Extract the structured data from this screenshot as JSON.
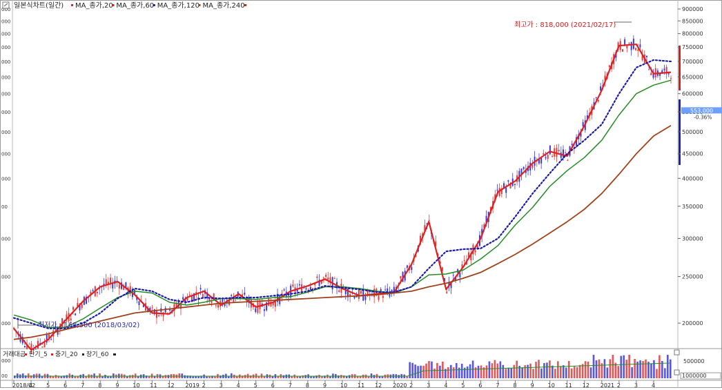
{
  "header": {
    "title": "일본식차트(일간)",
    "legend": [
      {
        "label": "MA_종가,20",
        "color": "#e02020"
      },
      {
        "label": "MA_종가,60",
        "color": "#e02020"
      },
      {
        "label": "MA_종가,120",
        "color": "#1a1aa8"
      },
      {
        "label": "MA_종가,240",
        "color": "#a0401a"
      }
    ]
  },
  "annotations": {
    "high_label": "최고가 : 818,000 (2021/02/17)",
    "low_label": "최저가 : 168,500 (2018/03/02)"
  },
  "price_axis": {
    "right_ticks": [
      "900000",
      "850000",
      "800000",
      "750000",
      "700000",
      "650000",
      "600000",
      "550000",
      "500000",
      "450000",
      "400000",
      "350000",
      "300000",
      "250000",
      "200000"
    ],
    "left_ticks": [
      "000",
      "000",
      "000",
      "000",
      "000",
      "000",
      "000",
      "000",
      "000",
      "000",
      "000",
      "00",
      "000",
      "000",
      "000"
    ],
    "current_price": "553,000",
    "current_change": "-0.36%"
  },
  "volume": {
    "legend": [
      {
        "label": "거래대금",
        "color": "#e02020"
      },
      {
        "label": "단기_5",
        "color": "#e02020"
      },
      {
        "label": "중기_20",
        "color": "#e02020"
      },
      {
        "label": "장기_60",
        "color": "#222222"
      }
    ],
    "axis_ticks": [
      "500000",
      "1000000"
    ],
    "left_ticks": [
      "000",
      "00"
    ]
  },
  "x_axis": {
    "labels": [
      "2018/02",
      "4",
      "5",
      "6",
      "7",
      "8",
      "9",
      "10",
      "11",
      "12",
      "2019",
      "2",
      "3",
      "4",
      "5",
      "6",
      "7",
      "8",
      "9",
      "10",
      "11",
      "12",
      "2020",
      "2",
      "3",
      "4",
      "5",
      "6",
      "7",
      "8",
      "9",
      "10",
      "11",
      "12",
      "2021",
      "2",
      "3",
      "4"
    ]
  },
  "colors": {
    "up": "#e03a3a",
    "down": "#3a3ad8",
    "ma20": "#e02020",
    "ma120": "#1a1aa8",
    "ma60": "#228b22",
    "ma240": "#a0401a",
    "current": "#6fa0ff",
    "sidebar_red": "#d02020",
    "sidebar_blue": "#2020b0"
  },
  "chart_data": {
    "type": "line",
    "title": "일본식차트(일간)",
    "y_scale": "log",
    "ylim": [
      180000,
      900000
    ],
    "x": [
      "2018/02",
      "2018/03",
      "2018/04",
      "2018/05",
      "2018/06",
      "2018/07",
      "2018/08",
      "2018/09",
      "2018/10",
      "2018/11",
      "2018/12",
      "2019/01",
      "2019/02",
      "2019/03",
      "2019/04",
      "2019/05",
      "2019/06",
      "2019/07",
      "2019/08",
      "2019/09",
      "2019/10",
      "2019/11",
      "2019/12",
      "2020/01",
      "2020/02",
      "2020/03",
      "2020/04",
      "2020/05",
      "2020/06",
      "2020/07",
      "2020/08",
      "2020/09",
      "2020/10",
      "2020/11",
      "2020/12",
      "2021/01",
      "2021/02",
      "2021/03",
      "2021/04"
    ],
    "series": [
      {
        "name": "MA_종가,20",
        "values": [
          195000,
          176000,
          185000,
          203000,
          222000,
          238000,
          244000,
          229000,
          210000,
          209000,
          226000,
          233000,
          218000,
          230000,
          216000,
          221000,
          233000,
          239000,
          247000,
          236000,
          228000,
          230000,
          232000,
          265000,
          325000,
          235000,
          262000,
          300000,
          375000,
          395000,
          430000,
          455000,
          445000,
          515000,
          610000,
          755000,
          760000,
          660000,
          665000
        ]
      },
      {
        "name": "MA_종가,60",
        "values": [
          208000,
          203000,
          196000,
          196000,
          204000,
          215000,
          226000,
          233000,
          231000,
          221000,
          218000,
          221000,
          225000,
          225000,
          224000,
          226000,
          227000,
          232000,
          238000,
          238000,
          236000,
          233000,
          231000,
          238000,
          252000,
          253000,
          258000,
          272000,
          290000,
          320000,
          348000,
          385000,
          415000,
          442000,
          480000,
          542000,
          600000,
          625000,
          640000
        ]
      },
      {
        "name": "MA_종가,120",
        "values": [
          205000,
          200000,
          195000,
          195000,
          200000,
          210000,
          225000,
          236000,
          233000,
          224000,
          221000,
          226000,
          225000,
          226000,
          226000,
          228000,
          230000,
          233000,
          239000,
          237000,
          235000,
          232000,
          232000,
          238000,
          260000,
          282000,
          285000,
          286000,
          300000,
          333000,
          372000,
          410000,
          450000,
          480000,
          518000,
          600000,
          680000,
          705000,
          700000
        ]
      },
      {
        "name": "MA_종가,240",
        "values": [
          185000,
          187000,
          190000,
          194000,
          198000,
          202000,
          206000,
          210000,
          212000,
          214000,
          216000,
          218000,
          220000,
          221000,
          222000,
          223000,
          224000,
          225000,
          226000,
          227000,
          228000,
          229000,
          231000,
          233000,
          238000,
          242000,
          248000,
          255000,
          266000,
          278000,
          292000,
          308000,
          325000,
          345000,
          372000,
          408000,
          450000,
          490000,
          515000
        ]
      }
    ],
    "annotations": [
      "최고가 : 818,000 (2021/02/17)",
      "최저가 : 168,500 (2018/03/02)"
    ]
  }
}
